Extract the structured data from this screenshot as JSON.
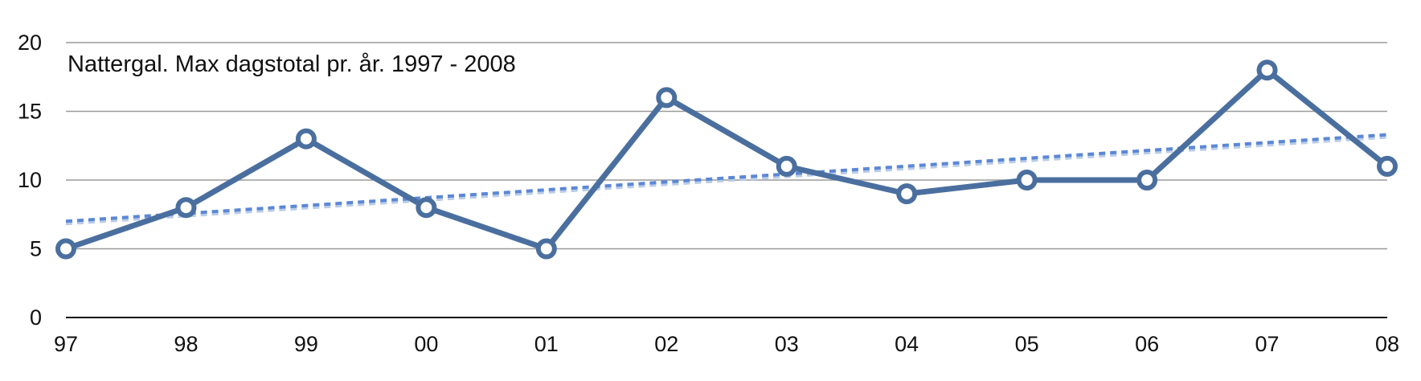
{
  "chart_data": {
    "type": "line",
    "title": "Nattergal. Max dagstotal pr. år. 1997 - 2008",
    "categories": [
      "97",
      "98",
      "99",
      "00",
      "01",
      "02",
      "03",
      "04",
      "05",
      "06",
      "07",
      "08"
    ],
    "series": [
      {
        "values": [
          5,
          8,
          13,
          8,
          5,
          16,
          11,
          9,
          10,
          10,
          18,
          11
        ],
        "color": "#4a6f9f"
      }
    ],
    "trendline": {
      "start": 7.0,
      "end": 13.3,
      "color": "#5b87d6",
      "style": "dotted"
    },
    "y_ticks": [
      "0",
      "5",
      "10",
      "15",
      "20"
    ],
    "ylim": [
      0,
      20
    ],
    "grid": true,
    "legend": "none"
  }
}
